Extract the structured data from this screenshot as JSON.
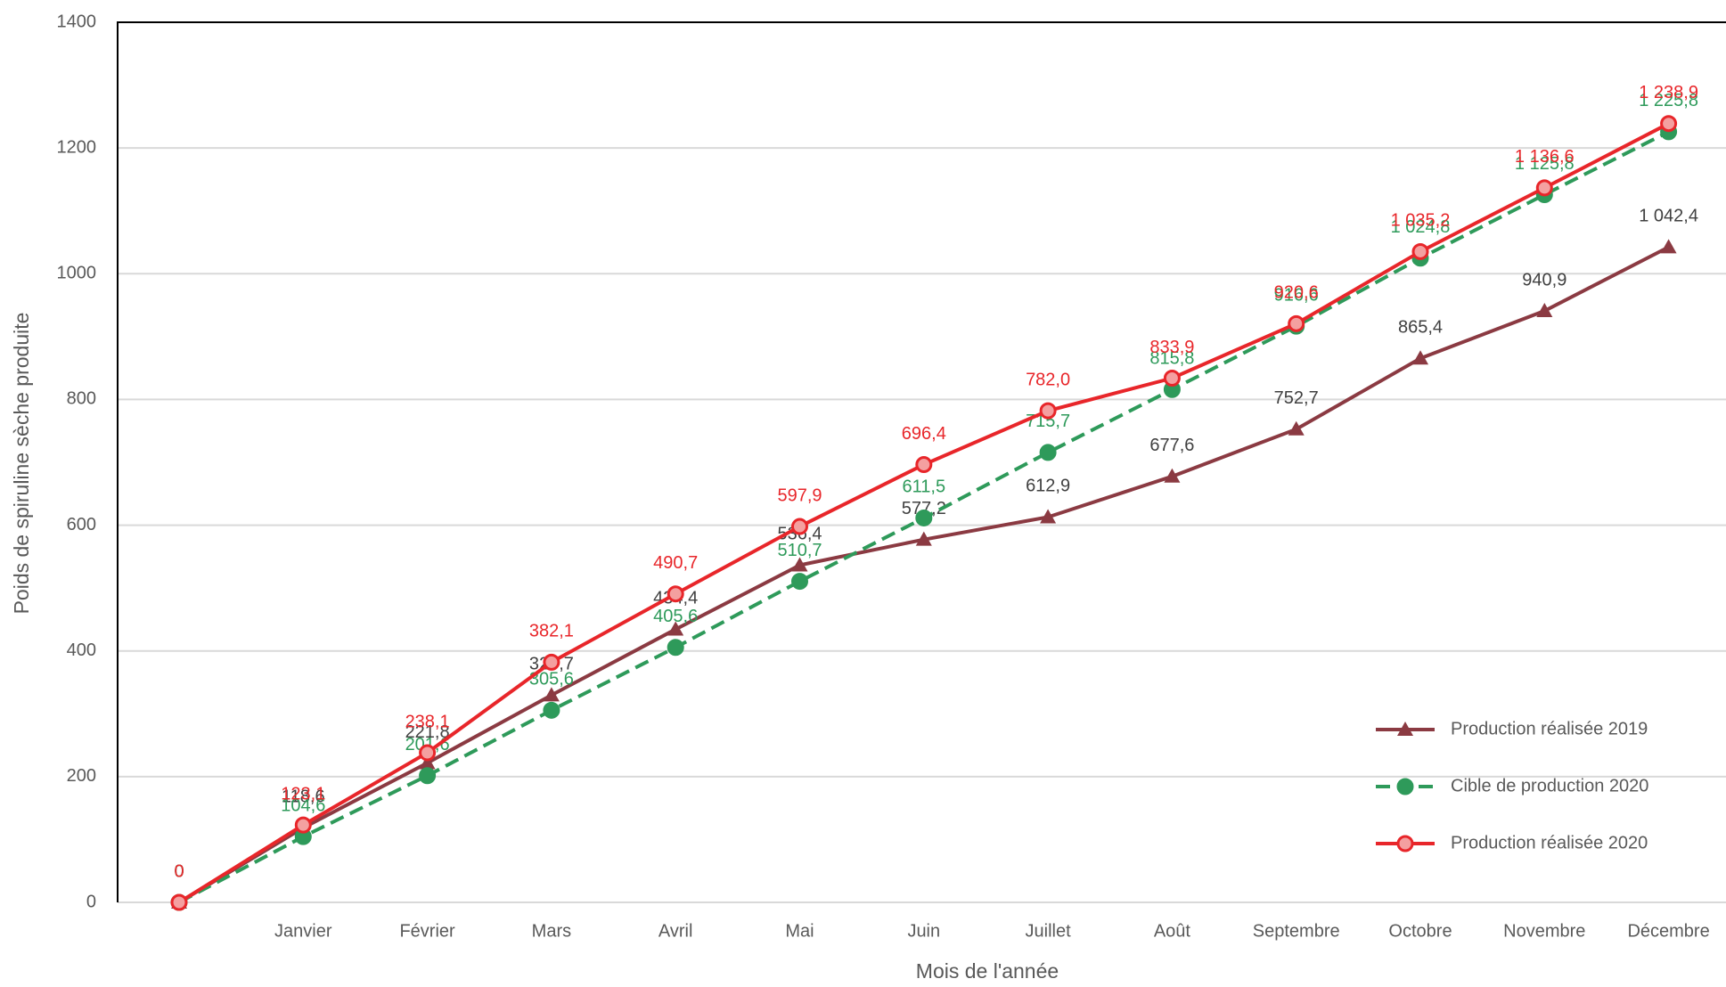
{
  "chart_data": {
    "type": "line",
    "xlabel": "Mois de l'année",
    "ylabel": "Poids de spiruline sèche produite",
    "categories": [
      null,
      "Janvier",
      "Février",
      "Mars",
      "Avril",
      "Mai",
      "Juin",
      "Juillet",
      "Août",
      "Septembre",
      "Octobre",
      "Novembre",
      "Décembre"
    ],
    "ylim": [
      0,
      1400
    ],
    "yticks": [
      0,
      200,
      400,
      600,
      800,
      1000,
      1200,
      1400
    ],
    "grid": true,
    "legend": "lower right",
    "series": [
      {
        "name": "Production réalisée 2019",
        "color": "#8b3a42",
        "marker": "triangle",
        "dashed": false,
        "values": [
          0,
          118.6,
          221.8,
          329.7,
          434.4,
          536.4,
          577.2,
          612.9,
          677.6,
          752.7,
          865.4,
          940.9,
          1042.4
        ],
        "value_labels": [
          "0",
          "118,6",
          "221,8",
          "329,7",
          "434,4",
          "536,4",
          "577,2",
          "612,9",
          "677,6",
          "752,7",
          "865,4",
          "940,9",
          "1 042,4"
        ]
      },
      {
        "name": "Cible de production 2020",
        "color": "#2e9a5a",
        "marker": "circle",
        "dashed": true,
        "values": [
          0,
          104.6,
          201.6,
          305.6,
          405.6,
          510.7,
          611.5,
          715.7,
          815.8,
          916.6,
          1024.8,
          1125.8,
          1225.8
        ],
        "value_labels": [
          "0",
          "104,6",
          "201,6",
          "305,6",
          "405,6",
          "510,7",
          "611,5",
          "715,7",
          "815,8",
          "916,6",
          "1 024,8",
          "1 125,8",
          "1 225,8"
        ]
      },
      {
        "name": "Production réalisée 2020",
        "color": "#e8262a",
        "marker": "circle",
        "dashed": false,
        "values": [
          0,
          123.1,
          238.1,
          382.1,
          490.7,
          597.9,
          696.4,
          782.0,
          833.9,
          920.6,
          1035.2,
          1136.6,
          1238.9
        ],
        "value_labels": [
          "0",
          "123,1",
          "238,1",
          "382,1",
          "490,7",
          "597,9",
          "696,4",
          "782,0",
          "833,9",
          "920,6",
          "1 035,2",
          "1 136,6",
          "1 238,9"
        ]
      }
    ]
  }
}
